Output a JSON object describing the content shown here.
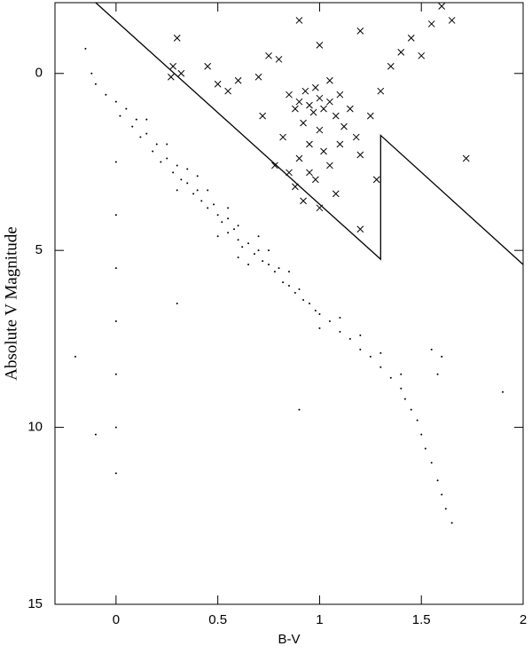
{
  "chart_data": {
    "type": "scatter",
    "x_label": "B-V",
    "y_label": "Absolute V Magnitude",
    "xlim": [
      -0.3,
      2
    ],
    "ylim": [
      -2,
      15
    ],
    "y_inverted": true,
    "xticks": [
      0,
      0.5,
      1,
      1.5,
      2
    ],
    "yticks": [
      0,
      5,
      10,
      15
    ],
    "series": [
      {
        "marker": "dot",
        "color": "#000000",
        "x": [
          -0.1,
          -0.05,
          0,
          0.02,
          0.05,
          0.08,
          0.1,
          0.12,
          0.15,
          0.18,
          0.2,
          0.22,
          0.25,
          0.28,
          0.3,
          0.32,
          0.35,
          0.38,
          0.4,
          0.42,
          0.45,
          0.48,
          0.5,
          0.52,
          0.55,
          0.55,
          0.58,
          0.6,
          0.6,
          0.62,
          0.65,
          0.68,
          0.7,
          0.72,
          0.75,
          0.78,
          0.8,
          0.82,
          0.85,
          0.88,
          0.9,
          0.92,
          0.95,
          0.98,
          1.0,
          1.05,
          1.1,
          1.15,
          1.2,
          1.25,
          1.3,
          1.35,
          1.4,
          1.42,
          1.45,
          1.48,
          1.5,
          1.52,
          1.55,
          1.58,
          1.6,
          1.62,
          1.65,
          1.6,
          1.58,
          1.55,
          0.5,
          0.45,
          0.65,
          0.7,
          0.4,
          0.3,
          0.75,
          0.85,
          1.0,
          1.1,
          1.2,
          1.3,
          1.4,
          0.6,
          0.55,
          0.35,
          0.25,
          0.15,
          -0.15,
          -0.12,
          0,
          0,
          0,
          0,
          0,
          0,
          0,
          -0.1,
          0.3,
          1.9,
          0.9,
          -0.2
        ],
        "y": [
          0.3,
          0.6,
          0.8,
          1.2,
          1.0,
          1.5,
          1.3,
          1.8,
          1.7,
          2.2,
          2.0,
          2.5,
          2.4,
          2.8,
          2.6,
          3.0,
          3.1,
          3.4,
          3.3,
          3.6,
          3.8,
          3.7,
          4.0,
          4.2,
          4.1,
          4.5,
          4.4,
          4.7,
          4.3,
          4.9,
          4.8,
          5.1,
          5.0,
          5.3,
          5.4,
          5.6,
          5.5,
          5.9,
          6.0,
          6.2,
          6.1,
          6.4,
          6.5,
          6.7,
          6.8,
          7.0,
          7.3,
          7.5,
          7.8,
          8.0,
          8.3,
          8.6,
          8.9,
          9.2,
          9.5,
          9.8,
          10.2,
          10.6,
          11.0,
          11.5,
          11.9,
          12.3,
          12.7,
          8.0,
          8.5,
          7.8,
          4.6,
          3.3,
          5.4,
          4.6,
          2.9,
          3.3,
          5.0,
          5.6,
          7.2,
          6.9,
          7.4,
          7.9,
          8.5,
          5.2,
          3.8,
          2.7,
          2.0,
          1.3,
          -0.7,
          0.0,
          2.5,
          4,
          5.5,
          7,
          8.5,
          10,
          11.3,
          10.2,
          6.5,
          9,
          9.5,
          8
        ]
      },
      {
        "marker": "x",
        "color": "#000000",
        "x": [
          0.3,
          0.28,
          0.32,
          0.27,
          0.45,
          0.5,
          0.55,
          0.6,
          0.7,
          0.75,
          0.8,
          0.85,
          0.88,
          0.9,
          0.92,
          0.95,
          0.97,
          1.0,
          1.02,
          1.05,
          1.08,
          1.1,
          1.12,
          1.15,
          1.0,
          0.95,
          0.9,
          0.85,
          0.88,
          0.92,
          0.98,
          1.05,
          1.1,
          1.2,
          1.18,
          1.25,
          1.3,
          1.35,
          1.4,
          1.45,
          1.55,
          1.6,
          1.5,
          1.65,
          1.2,
          1.0,
          0.9,
          1.72,
          0.95,
          1.02,
          0.82,
          0.78,
          1.0,
          1.2,
          0.72,
          1.28,
          1.08,
          0.98,
          1.05,
          0.93
        ],
        "y": [
          -1,
          -0.2,
          0.0,
          0.1,
          -0.2,
          0.3,
          0.5,
          0.2,
          0.1,
          -0.5,
          -0.4,
          0.6,
          1.0,
          0.8,
          1.4,
          0.9,
          1.1,
          0.7,
          1.0,
          0.8,
          1.2,
          0.6,
          1.5,
          1.0,
          1.6,
          2.0,
          2.4,
          2.8,
          3.2,
          3.6,
          3.0,
          2.6,
          2.0,
          2.3,
          1.8,
          1.2,
          0.5,
          -0.2,
          -0.6,
          -1.0,
          -1.4,
          -1.9,
          -0.5,
          -1.5,
          -1.2,
          -0.8,
          -1.5,
          2.4,
          2.8,
          2.2,
          1.8,
          2.6,
          3.8,
          4.4,
          1.2,
          3.0,
          3.4,
          0.4,
          0.2,
          0.5
        ]
      },
      {
        "marker": "line",
        "color": "#000000",
        "x": [
          -0.1,
          1.3,
          1.3,
          2
        ],
        "y": [
          -2,
          5.25,
          1.75,
          5.4
        ]
      }
    ]
  }
}
